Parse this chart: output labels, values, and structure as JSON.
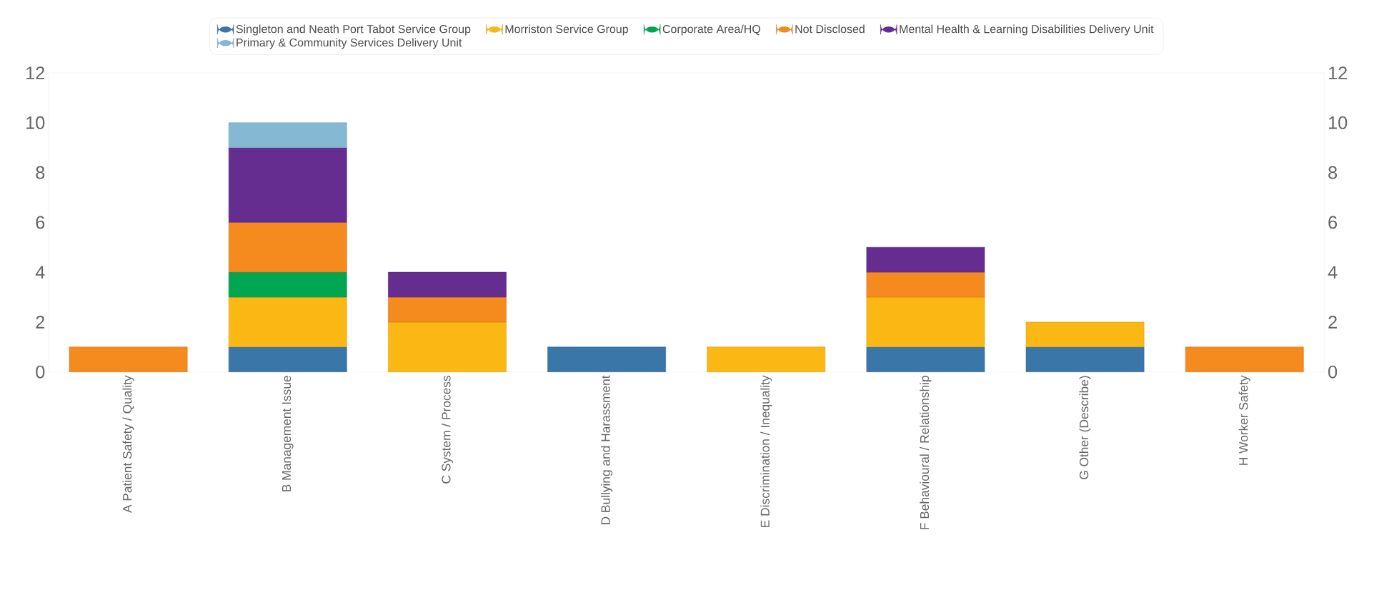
{
  "chart_data": {
    "type": "bar",
    "stacked": true,
    "categories": [
      "A Patient Safety / Quality",
      "B Management Issue",
      "C System / Process",
      "D Bullying and Harassment",
      "E Discrimination / Inequality",
      "F Behavioural / Relationship",
      "G Other (Describe)",
      "H Worker Safety"
    ],
    "series": [
      {
        "name": "Singleton and Neath Port Tabot Service Group",
        "color": "#3a76a8",
        "values": [
          0,
          1,
          0,
          1,
          0,
          1,
          1,
          0
        ]
      },
      {
        "name": "Morriston Service Group",
        "color": "#fbb714",
        "values": [
          0,
          2,
          2,
          0,
          1,
          2,
          1,
          0
        ]
      },
      {
        "name": "Corporate Area/HQ",
        "color": "#00a651",
        "values": [
          0,
          1,
          0,
          0,
          0,
          0,
          0,
          0
        ]
      },
      {
        "name": "Not Disclosed",
        "color": "#f58a1f",
        "values": [
          1,
          2,
          1,
          0,
          0,
          1,
          0,
          1
        ]
      },
      {
        "name": "Mental Health & Learning Disabilities Delivery Unit",
        "color": "#662d91",
        "values": [
          0,
          3,
          1,
          0,
          0,
          1,
          0,
          0
        ]
      },
      {
        "name": "Primary & Community Services Delivery Unit",
        "color": "#85b9d3",
        "values": [
          0,
          1,
          0,
          0,
          0,
          0,
          0,
          0
        ]
      }
    ],
    "ylim": [
      0,
      12
    ],
    "yticks": [
      0,
      2,
      4,
      6,
      8,
      10,
      12
    ],
    "y2lim": [
      0,
      12
    ],
    "y2ticks": [
      0,
      2,
      4,
      6,
      8,
      10,
      12
    ],
    "legend": "top"
  }
}
